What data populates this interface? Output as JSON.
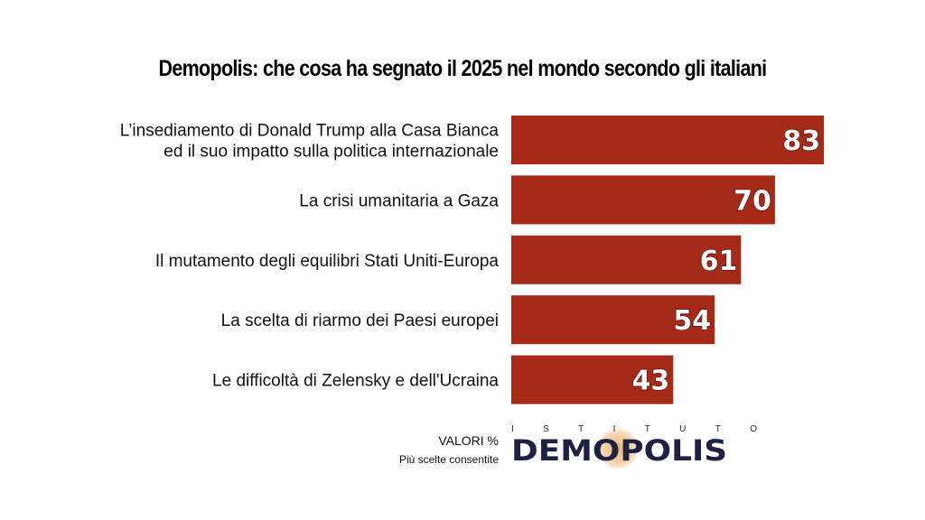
{
  "chart_data": {
    "type": "bar",
    "orientation": "horizontal",
    "title": "Demopolis: che cosa ha segnato il 2025 nel mondo secondo gli italiani",
    "categories": [
      [
        "L’insediamento di Donald Trump alla Casa Bianca",
        "ed il suo impatto sulla politica internazionale"
      ],
      [
        "La crisi umanitaria a Gaza"
      ],
      [
        "Il mutamento degli equilibri Stati Uniti-Europa"
      ],
      [
        "La scelta di riarmo dei Paesi europei"
      ],
      [
        "Le difficoltà di Zelensky e dell'Ucraina"
      ]
    ],
    "values": [
      83,
      70,
      61,
      54,
      43
    ],
    "xlim": [
      0,
      100
    ],
    "grid": false,
    "legend": "none",
    "bar_color": "#a52a18",
    "unit_note": "VALORI %",
    "note": "Più scelte consentite"
  },
  "logo": {
    "top_text": [
      "I",
      "S",
      "T",
      "I",
      "T",
      "U",
      "T",
      "O"
    ],
    "name": "DEMOPOLIS"
  }
}
